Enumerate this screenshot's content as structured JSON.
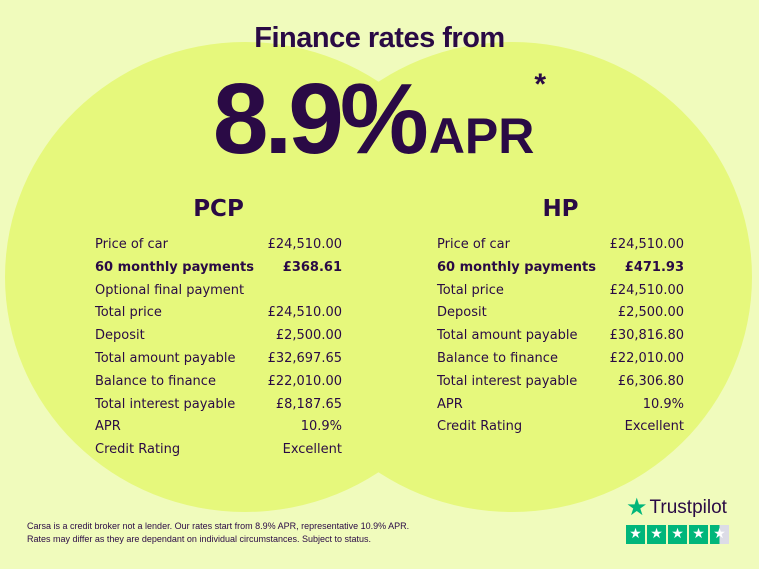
{
  "header": {
    "title": "Finance rates from",
    "rate": "8.9%",
    "apr": "APR",
    "asterisk": "*"
  },
  "pcp": {
    "title": "PCP",
    "rows": [
      {
        "label": "Price of car",
        "value": "£24,510.00"
      },
      {
        "label": "60 monthly payments",
        "value": "£368.61",
        "bold": true
      },
      {
        "label": "Optional final payment",
        "value": ""
      },
      {
        "label": "Total price",
        "value": "£24,510.00"
      },
      {
        "label": "Deposit",
        "value": "£2,500.00"
      },
      {
        "label": "Total amount payable",
        "value": "£32,697.65"
      },
      {
        "label": "Balance to finance",
        "value": "£22,010.00"
      },
      {
        "label": "Total interest payable",
        "value": "£8,187.65"
      },
      {
        "label": "APR",
        "value": "10.9%"
      },
      {
        "label": "Credit Rating",
        "value": "Excellent"
      }
    ]
  },
  "hp": {
    "title": "HP",
    "rows": [
      {
        "label": "Price of car",
        "value": "£24,510.00"
      },
      {
        "label": "60 monthly payments",
        "value": "£471.93",
        "bold": true
      },
      {
        "label": "Total price",
        "value": "£24,510.00"
      },
      {
        "label": "Deposit",
        "value": "£2,500.00"
      },
      {
        "label": "Total amount payable",
        "value": "£30,816.80"
      },
      {
        "label": "Balance to finance",
        "value": "£22,010.00"
      },
      {
        "label": "Total interest payable",
        "value": "£6,306.80"
      },
      {
        "label": "APR",
        "value": "10.9%"
      },
      {
        "label": "Credit Rating",
        "value": "Excellent"
      }
    ]
  },
  "footer": {
    "line1": "Carsa is a credit broker not a lender. Our rates start from 8.9% APR, representative 10.9% APR.",
    "line2": "Rates may differ as they are dependant on individual circumstances. Subject to status."
  },
  "trustpilot": {
    "name": "Trustpilot",
    "stars": 4.5,
    "icon": "star-icon",
    "color": "#00b67a"
  }
}
